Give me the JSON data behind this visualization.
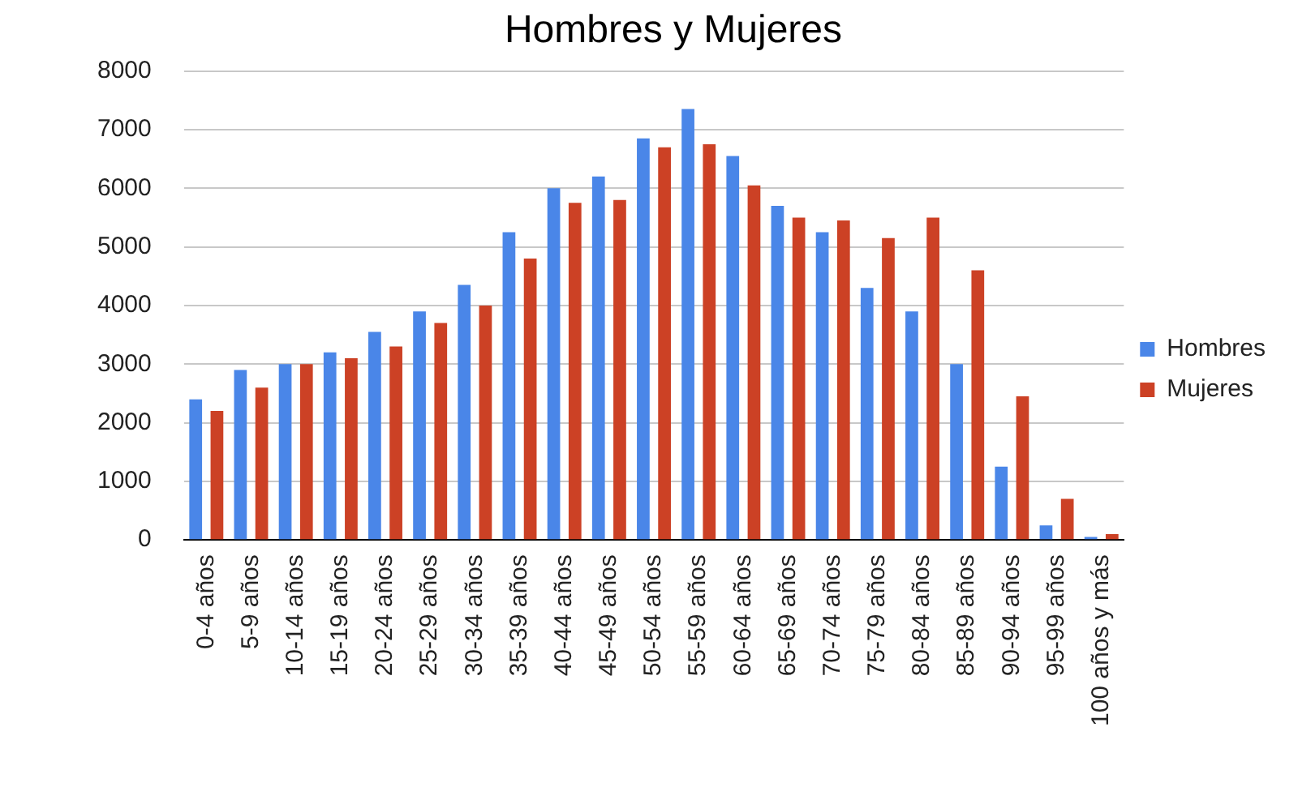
{
  "chart_data": {
    "type": "bar",
    "title": "Hombres y Mujeres",
    "categories": [
      "0-4 años",
      "5-9 años",
      "10-14 años",
      "15-19 años",
      "20-24 años",
      "25-29 años",
      "30-34 años",
      "35-39 años",
      "40-44 años",
      "45-49 años",
      "50-54 años",
      "55-59 años",
      "60-64 años",
      "65-69 años",
      "70-74 años",
      "75-79 años",
      "80-84 años",
      "85-89 años",
      "90-94 años",
      "95-99 años",
      "100 años y más"
    ],
    "series": [
      {
        "name": "Hombres",
        "color": "#4a86e8",
        "values": [
          2400,
          2900,
          3000,
          3200,
          3550,
          3900,
          4350,
          5250,
          6000,
          6200,
          6850,
          7350,
          6550,
          5700,
          5250,
          4300,
          3900,
          3000,
          1250,
          250,
          50
        ]
      },
      {
        "name": "Mujeres",
        "color": "#cc4125",
        "values": [
          2200,
          2600,
          3000,
          3100,
          3300,
          3700,
          4000,
          4800,
          5750,
          5800,
          6700,
          6750,
          6050,
          5500,
          5450,
          5150,
          5500,
          4600,
          2450,
          700,
          100
        ]
      }
    ],
    "ylim": [
      0,
      8000
    ],
    "yticks": [
      0,
      1000,
      2000,
      3000,
      4000,
      5000,
      6000,
      7000,
      8000
    ],
    "grid": "y",
    "legend": "right"
  }
}
